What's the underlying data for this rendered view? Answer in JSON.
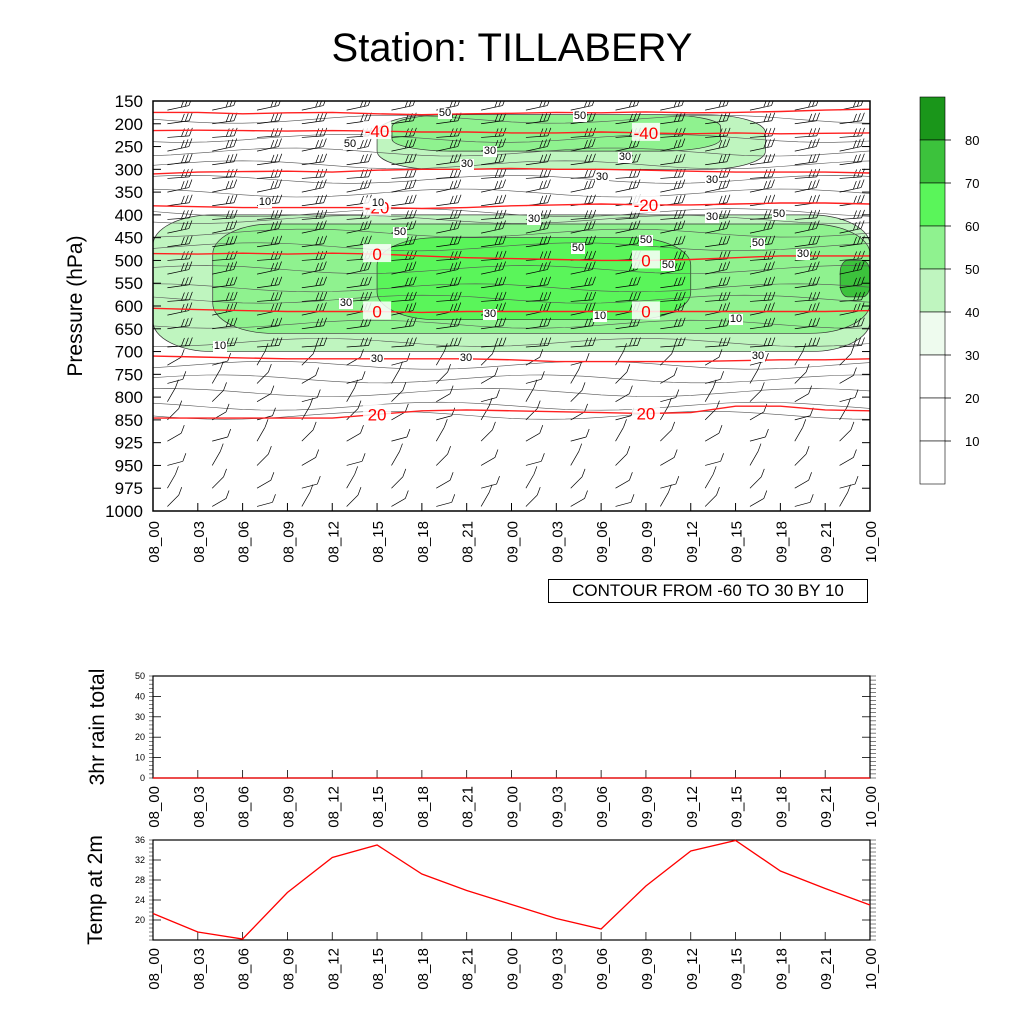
{
  "title": "Station: TILLABERY",
  "chart_data": [
    {
      "type": "heatmap",
      "ylabel": "Pressure (hPa)",
      "y_ticks": [
        150,
        200,
        250,
        300,
        350,
        400,
        450,
        500,
        550,
        600,
        650,
        700,
        750,
        800,
        850,
        925,
        950,
        975,
        1000
      ],
      "x_ticks": [
        "08_00",
        "08_03",
        "08_06",
        "08_09",
        "08_12",
        "08_15",
        "08_18",
        "08_21",
        "09_00",
        "09_03",
        "09_06",
        "09_09",
        "09_12",
        "09_15",
        "09_18",
        "09_21",
        "10_00"
      ],
      "note": "CONTOUR FROM -60 TO 30 BY 10",
      "colorbar": {
        "levels": [
          10,
          20,
          30,
          40,
          50,
          60,
          70,
          80
        ],
        "colors": [
          "#ffffff",
          "#ffffff",
          "#ffffff",
          "#eefbee",
          "#bff5bf",
          "#8ff28f",
          "#5af55a",
          "#3cc23c",
          "#1a961a"
        ]
      },
      "shaded_fields": [
        {
          "level": 40,
          "x_from": "08_00",
          "x_to": "10_00",
          "p_from": 400,
          "p_to": 700
        },
        {
          "level": 50,
          "x_from": "08_04",
          "x_to": "10_00",
          "p_from": 420,
          "p_to": 660
        },
        {
          "level": 60,
          "x_from": "08_15",
          "x_to": "09_12",
          "p_from": 450,
          "p_to": 630
        },
        {
          "level": 40,
          "x_from": "08_15",
          "x_to": "09_17",
          "p_from": 180,
          "p_to": 300
        },
        {
          "level": 50,
          "x_from": "08_16",
          "x_to": "09_14",
          "p_from": 180,
          "p_to": 260
        },
        {
          "level": 70,
          "x_from": "09_22",
          "x_to": "10_00",
          "p_from": 500,
          "p_to": 580
        }
      ],
      "temperature_contours": [
        {
          "value": -40,
          "label": "-40",
          "p": [
            175,
            175,
            178,
            176,
            175,
            178,
            180,
            178,
            177,
            175,
            176,
            174,
            176,
            175,
            173,
            170,
            168
          ]
        },
        {
          "value": -40,
          "label": "-40",
          "p": [
            215,
            214,
            215,
            216,
            215,
            216,
            218,
            218,
            220,
            220,
            218,
            220,
            222,
            220,
            222,
            221,
            220
          ]
        },
        {
          "value": -20,
          "label": "-20",
          "p": [
            310,
            306,
            305,
            304,
            306,
            302,
            300,
            300,
            298,
            300,
            300,
            302,
            304,
            306,
            306,
            306,
            308
          ]
        },
        {
          "value": -20,
          "label": "-20",
          "p": [
            380,
            382,
            384,
            384,
            384,
            384,
            386,
            384,
            380,
            378,
            376,
            378,
            378,
            376,
            374,
            374,
            376
          ]
        },
        {
          "value": 0,
          "label": "0",
          "p": [
            485,
            486,
            484,
            486,
            484,
            486,
            490,
            494,
            496,
            498,
            500,
            500,
            498,
            494,
            490,
            490,
            490
          ]
        },
        {
          "value": 0,
          "label": "0",
          "p": [
            605,
            608,
            610,
            612,
            612,
            612,
            614,
            612,
            612,
            612,
            612,
            612,
            612,
            612,
            612,
            612,
            610
          ]
        },
        {
          "value": 20,
          "label": "20",
          "p": [
            710,
            712,
            714,
            716,
            716,
            716,
            716,
            716,
            718,
            722,
            722,
            722,
            722,
            720,
            718,
            718,
            716
          ]
        },
        {
          "value": 20,
          "label": "20",
          "p": [
            846,
            846,
            846,
            846,
            846,
            838,
            830,
            828,
            830,
            832,
            834,
            836,
            834,
            820,
            820,
            828,
            830
          ]
        }
      ],
      "labels_shown": [
        "50",
        "50",
        "50",
        "30",
        "30",
        "30",
        "30",
        "30",
        "10",
        "10",
        "30",
        "30",
        "50",
        "50",
        "50",
        "50",
        "50",
        "50",
        "30",
        "30",
        "30",
        "10",
        "10",
        "10",
        "30",
        "30",
        "30"
      ],
      "wind_barbs": "present"
    },
    {
      "type": "line",
      "ylabel": "3hr rain total",
      "ylim": [
        0,
        50
      ],
      "y_ticks": [
        0,
        10,
        20,
        30,
        40,
        50
      ],
      "x": [
        "08_00",
        "08_03",
        "08_06",
        "08_09",
        "08_12",
        "08_15",
        "08_18",
        "08_21",
        "09_00",
        "09_03",
        "09_06",
        "09_09",
        "09_12",
        "09_15",
        "09_18",
        "09_21",
        "10_00"
      ],
      "values": [
        0,
        0,
        0,
        0,
        0,
        0,
        0,
        0,
        0,
        0,
        0,
        0,
        0,
        0,
        0,
        0,
        0
      ]
    },
    {
      "type": "line",
      "ylabel": "Temp at 2m",
      "ylim": [
        16,
        36
      ],
      "y_ticks": [
        20,
        24,
        28,
        32,
        36
      ],
      "x": [
        "08_00",
        "08_03",
        "08_06",
        "08_09",
        "08_12",
        "08_15",
        "08_18",
        "08_21",
        "09_00",
        "09_03",
        "09_06",
        "09_09",
        "09_12",
        "09_15",
        "09_18",
        "09_21",
        "10_00"
      ],
      "values": [
        21.3,
        17.6,
        16.2,
        25.5,
        32.5,
        35.0,
        29.2,
        25.9,
        23.1,
        20.3,
        18.2,
        26.8,
        33.8,
        35.9,
        29.8,
        26.3,
        23.0
      ],
      "color": "#ff0000"
    }
  ]
}
